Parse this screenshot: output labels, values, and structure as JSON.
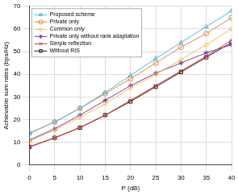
{
  "chart_data": {
    "type": "line",
    "x_label": "P (dB)",
    "y_label": "Achievable sum rates (bps/Hz)",
    "x": [
      0,
      5,
      10,
      15,
      20,
      25,
      30,
      35,
      40
    ],
    "xlim": [
      0,
      40
    ],
    "xticks": [
      0,
      5,
      10,
      15,
      20,
      25,
      30,
      35,
      40
    ],
    "ylim": [
      0,
      70
    ],
    "yticks": [
      0,
      10,
      20,
      30,
      40,
      50,
      60,
      70
    ],
    "grid": true,
    "legend": "upper left",
    "series": [
      {
        "name": "Proposed scheme",
        "color": "#4db6e0",
        "marker": "triangle",
        "values": [
          14,
          19,
          25,
          32,
          39.5,
          47,
          54,
          61,
          68
        ]
      },
      {
        "name": "Private only",
        "color": "#e8834a",
        "marker": "circle",
        "values": [
          14,
          19,
          25,
          31.5,
          38,
          45,
          52,
          58,
          65
        ]
      },
      {
        "name": "Common only",
        "color": "#f0c04a",
        "marker": "diamond",
        "values": [
          10.5,
          15.5,
          21,
          27,
          34,
          40,
          46.5,
          53,
          60
        ]
      },
      {
        "name": "Private only without rank adaptation",
        "color": "#7e3f98",
        "marker": "star",
        "values": [
          11,
          16,
          22,
          28.5,
          35,
          40.5,
          45,
          49.5,
          53
        ]
      },
      {
        "name": "Simple reflection",
        "color": "#d9352a",
        "marker": "cross",
        "values": [
          8,
          12,
          16.5,
          22,
          28.5,
          35,
          41.5,
          48,
          55
        ]
      },
      {
        "name": "Without RIS",
        "color": "#222222",
        "marker": "square",
        "values": [
          8,
          12,
          16.5,
          22,
          28,
          34.5,
          41,
          47.5,
          54
        ]
      }
    ]
  }
}
